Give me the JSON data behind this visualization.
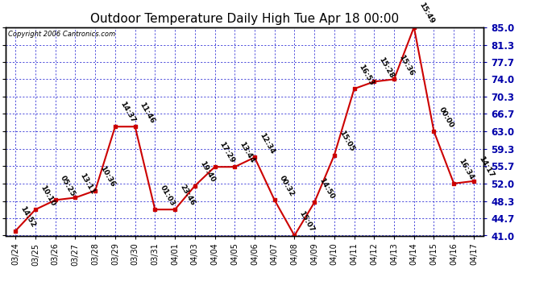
{
  "title": "Outdoor Temperature Daily High Tue Apr 18 00:00",
  "copyright": "Copyright 2006 Cantronics.com",
  "x_labels": [
    "03/24",
    "03/25",
    "03/26",
    "03/27",
    "03/28",
    "03/29",
    "03/30",
    "03/31",
    "04/01",
    "04/03",
    "04/04",
    "04/05",
    "04/06",
    "04/07",
    "04/08",
    "04/09",
    "04/10",
    "04/11",
    "04/12",
    "04/13",
    "04/14",
    "04/15",
    "04/16",
    "04/17"
  ],
  "y_values": [
    42.0,
    46.5,
    48.5,
    49.0,
    50.5,
    64.0,
    64.0,
    46.5,
    46.5,
    51.5,
    55.5,
    55.5,
    57.5,
    48.5,
    41.0,
    48.0,
    58.0,
    72.0,
    73.5,
    74.0,
    85.0,
    63.0,
    52.0,
    52.5
  ],
  "point_labels": [
    "14:52",
    "10:10",
    "05:25",
    "13:11",
    "10:36",
    "14:37",
    "11:46",
    "01:03",
    "23:46",
    "19:40",
    "17:29",
    "13:44",
    "12:34",
    "00:32",
    "15:07",
    "14:50",
    "15:05",
    "16:53",
    "15:28",
    "15:36",
    "15:49",
    "00:00",
    "16:34",
    "14:17"
  ],
  "y_ticks": [
    41.0,
    44.7,
    48.3,
    52.0,
    55.7,
    59.3,
    63.0,
    66.7,
    70.3,
    74.0,
    77.7,
    81.3,
    85.0
  ],
  "ylim": [
    41.0,
    85.0
  ],
  "line_color": "#cc0000",
  "marker_color": "#cc0000",
  "bg_color": "#ffffff",
  "grid_color": "#0000cc",
  "title_fontsize": 11,
  "label_fontsize": 7,
  "point_label_fontsize": 6.5,
  "tick_fontsize": 8.5
}
